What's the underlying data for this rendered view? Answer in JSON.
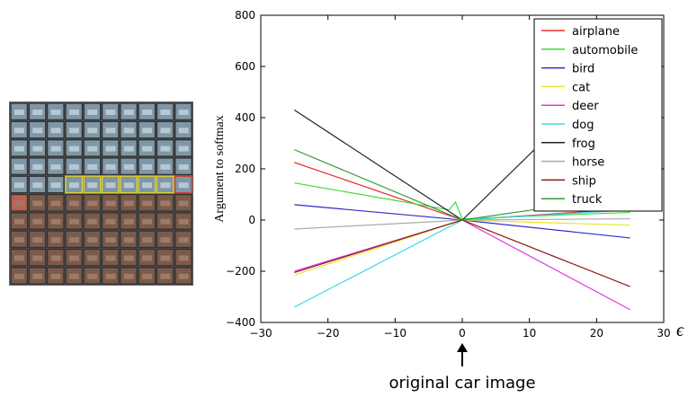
{
  "chart_data": {
    "type": "line",
    "ylabel": "Argument to softmax",
    "xlabel": "ϵ",
    "annotation": "original car image",
    "xlim": [
      -30,
      30
    ],
    "xticks": [
      {
        "value": -30,
        "label": "−30"
      },
      {
        "value": -20,
        "label": "−20"
      },
      {
        "value": -10,
        "label": "−10"
      },
      0,
      10,
      20,
      30
    ],
    "ylim": [
      -400,
      800
    ],
    "yticks": [
      {
        "value": -400,
        "label": "−400"
      },
      {
        "value": -200,
        "label": "−200"
      },
      0,
      200,
      400,
      600,
      800
    ],
    "x": [
      -25,
      -2,
      -1,
      0,
      25
    ],
    "legend": "upper right",
    "series": [
      {
        "name": "airplane",
        "color": "#e8312f",
        "values": [
          225,
          18,
          9,
          0,
          45
        ]
      },
      {
        "name": "automobile",
        "color": "#3ddc3d",
        "values": [
          145,
          40,
          70,
          5,
          30
        ]
      },
      {
        "name": "bird",
        "color": "#2d2dc8",
        "values": [
          60,
          5,
          2,
          0,
          -70
        ]
      },
      {
        "name": "cat",
        "color": "#e6e632",
        "values": [
          -215,
          -17,
          -9,
          0,
          -20
        ]
      },
      {
        "name": "deer",
        "color": "#e03ae0",
        "values": [
          -200,
          -16,
          -8,
          0,
          -350
        ]
      },
      {
        "name": "dog",
        "color": "#3ad8e8",
        "values": [
          -340,
          -27,
          -14,
          0,
          40
        ]
      },
      {
        "name": "frog",
        "color": "#222222",
        "values": [
          430,
          34,
          17,
          0,
          640
        ]
      },
      {
        "name": "horse",
        "color": "#aaaaaa",
        "values": [
          -35,
          -3,
          -1,
          0,
          5
        ]
      },
      {
        "name": "ship",
        "color": "#8b1a1a",
        "values": [
          -205,
          -16,
          -8,
          0,
          -260
        ]
      },
      {
        "name": "truck",
        "color": "#3a9a3a",
        "values": [
          275,
          22,
          11,
          0,
          95
        ]
      }
    ]
  }
}
